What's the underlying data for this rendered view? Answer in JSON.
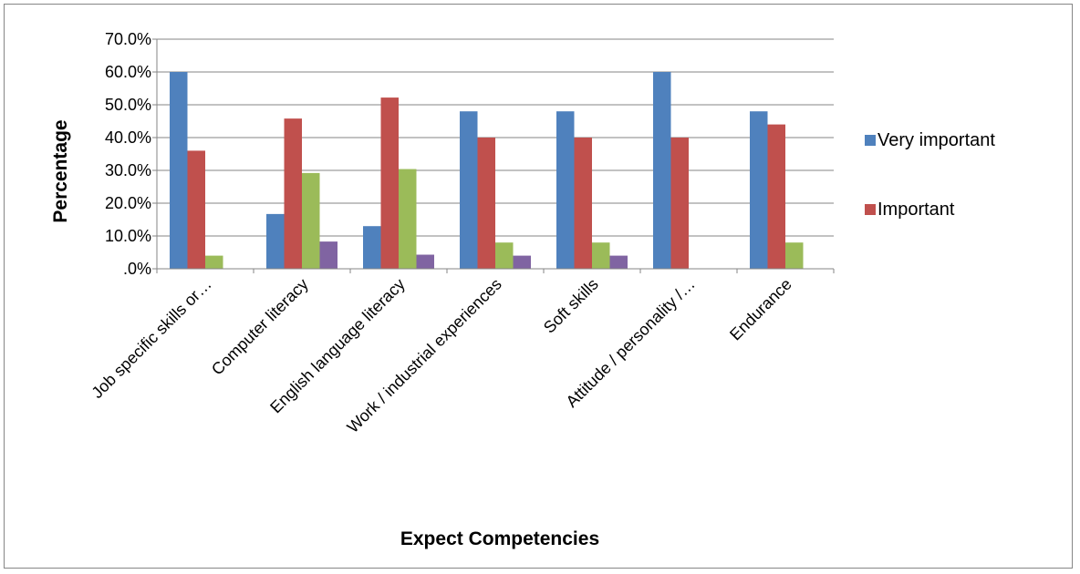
{
  "chart_data": {
    "type": "bar",
    "title": "",
    "xlabel": "Expect Competencies",
    "ylabel": "Percentage",
    "ylim": [
      0,
      70
    ],
    "yticks": [
      0,
      10,
      20,
      30,
      40,
      50,
      60,
      70
    ],
    "ytick_labels": [
      ".0%",
      "10.0%",
      "20.0%",
      "30.0%",
      "40.0%",
      "50.0%",
      "60.0%",
      "70.0%"
    ],
    "grid": true,
    "legend_position": "right",
    "categories": [
      "Job specific skills or…",
      "Computer literacy",
      "English language literacy",
      "Work / industrial experiences",
      "Soft skills",
      "Attitude / personality /…",
      "Endurance"
    ],
    "series": [
      {
        "name": "Very important",
        "color": "#4F81BD",
        "values": [
          60.0,
          16.7,
          13.0,
          48.0,
          48.0,
          60.0,
          48.0
        ]
      },
      {
        "name": "Important",
        "color": "#C0504D",
        "values": [
          36.0,
          45.8,
          52.2,
          40.0,
          40.0,
          40.0,
          44.0
        ]
      },
      {
        "color": "#9BBB59",
        "values": [
          4.0,
          29.2,
          30.4,
          8.0,
          8.0,
          0,
          8.0
        ]
      },
      {
        "color": "#8064A2",
        "values": [
          0,
          8.3,
          4.3,
          4.0,
          4.0,
          0,
          0
        ]
      }
    ]
  }
}
